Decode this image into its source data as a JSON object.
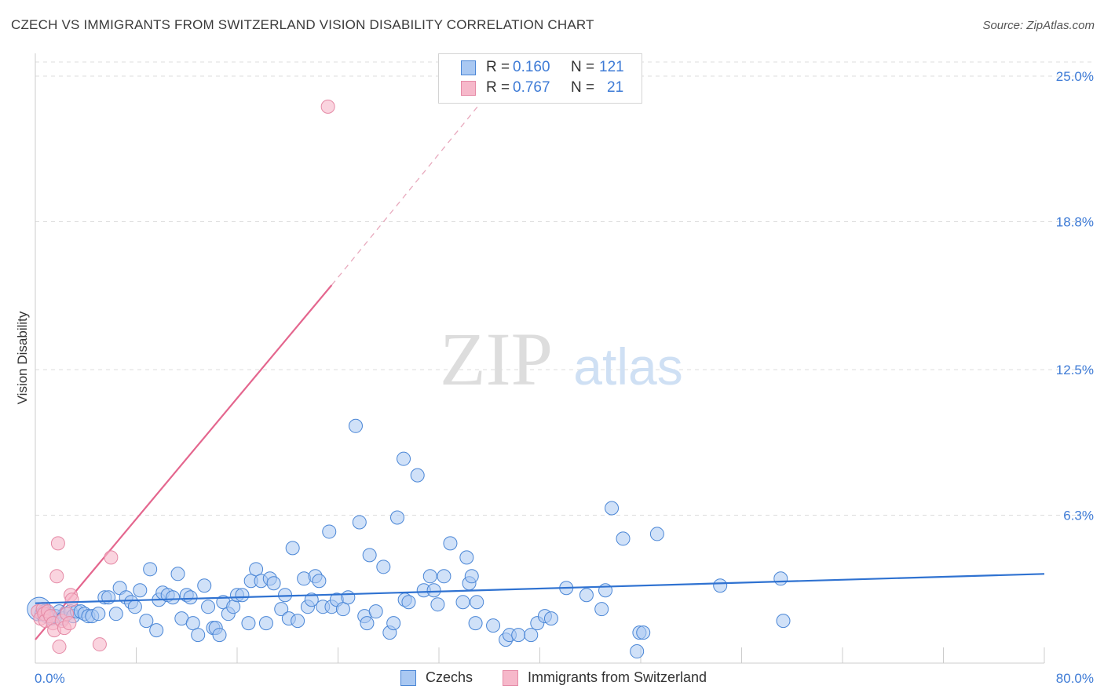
{
  "title": "CZECH VS IMMIGRANTS FROM SWITZERLAND VISION DISABILITY CORRELATION CHART",
  "source": "Source: ZipAtlas.com",
  "watermark": {
    "zip": "ZIP",
    "atlas": "atlas"
  },
  "legend": {
    "series1": {
      "r_label": "R =",
      "r_value": "0.160",
      "n_label": "N =",
      "n_value": "121",
      "color": "#a9c8f2"
    },
    "series2": {
      "r_label": "R =",
      "r_value": "0.767",
      "n_label": "N =",
      "n_value": "21",
      "color": "#f6b8ca"
    }
  },
  "bottom_legend": {
    "series1": "Czechs",
    "series2": "Immigrants from Switzerland"
  },
  "chart_data": {
    "type": "scatter",
    "title": "CZECH VS IMMIGRANTS FROM SWITZERLAND VISION DISABILITY CORRELATION CHART",
    "xlabel": "",
    "ylabel": "Vision Disability",
    "xlim": [
      0,
      80
    ],
    "ylim": [
      0,
      25.6
    ],
    "x_tick_labels": [
      "0.0%",
      "80.0%"
    ],
    "y_ticks": [
      6.3,
      12.5,
      18.8,
      25.0
    ],
    "y_tick_labels": [
      "6.3%",
      "12.5%",
      "18.8%",
      "25.0%"
    ],
    "grid": true,
    "grid_style": "dashed",
    "colors": {
      "czechs": "#a9c8f2",
      "czechs_edge": "#4a86d6",
      "czechs_line": "#2f72d1",
      "swiss": "#f6b8ca",
      "swiss_edge": "#e58aa6",
      "swiss_line": "#e4668e"
    },
    "series": [
      {
        "name": "Czechs",
        "trendline": {
          "x": [
            0,
            80
          ],
          "y": [
            2.55,
            3.8
          ]
        },
        "points": [
          [
            0.3,
            2.3
          ],
          [
            0.5,
            2.1
          ],
          [
            0.7,
            2.2
          ],
          [
            0.9,
            2.0
          ],
          [
            1.1,
            2.1
          ],
          [
            1.3,
            1.9
          ],
          [
            1.6,
            2.0
          ],
          [
            1.9,
            2.2
          ],
          [
            2.2,
            1.9
          ],
          [
            2.5,
            2.1
          ],
          [
            2.8,
            2.2
          ],
          [
            3.0,
            2.0
          ],
          [
            3.3,
            2.2
          ],
          [
            3.6,
            2.2
          ],
          [
            3.9,
            2.1
          ],
          [
            4.2,
            2.0
          ],
          [
            4.5,
            2.0
          ],
          [
            5.0,
            2.1
          ],
          [
            5.5,
            2.8
          ],
          [
            5.8,
            2.8
          ],
          [
            6.4,
            2.1
          ],
          [
            6.7,
            3.2
          ],
          [
            7.2,
            2.8
          ],
          [
            7.6,
            2.6
          ],
          [
            7.9,
            2.4
          ],
          [
            8.3,
            3.1
          ],
          [
            8.8,
            1.8
          ],
          [
            9.1,
            4.0
          ],
          [
            9.6,
            1.4
          ],
          [
            9.8,
            2.7
          ],
          [
            10.1,
            3.0
          ],
          [
            10.5,
            2.9
          ],
          [
            10.9,
            2.8
          ],
          [
            11.3,
            3.8
          ],
          [
            11.6,
            1.9
          ],
          [
            12.0,
            2.9
          ],
          [
            12.3,
            2.8
          ],
          [
            12.5,
            1.7
          ],
          [
            12.9,
            1.2
          ],
          [
            13.4,
            3.3
          ],
          [
            13.7,
            2.4
          ],
          [
            14.1,
            1.5
          ],
          [
            14.3,
            1.5
          ],
          [
            14.6,
            1.2
          ],
          [
            14.9,
            2.6
          ],
          [
            15.3,
            2.1
          ],
          [
            15.7,
            2.4
          ],
          [
            16.0,
            2.9
          ],
          [
            16.4,
            2.9
          ],
          [
            16.9,
            1.7
          ],
          [
            17.1,
            3.5
          ],
          [
            17.5,
            4.0
          ],
          [
            17.9,
            3.5
          ],
          [
            18.3,
            1.7
          ],
          [
            18.6,
            3.6
          ],
          [
            18.9,
            3.4
          ],
          [
            19.5,
            2.3
          ],
          [
            19.8,
            2.9
          ],
          [
            20.1,
            1.9
          ],
          [
            20.4,
            4.9
          ],
          [
            20.8,
            1.8
          ],
          [
            21.3,
            3.6
          ],
          [
            21.6,
            2.4
          ],
          [
            21.9,
            2.7
          ],
          [
            22.2,
            3.7
          ],
          [
            22.5,
            3.5
          ],
          [
            22.8,
            2.4
          ],
          [
            23.3,
            5.6
          ],
          [
            23.5,
            2.4
          ],
          [
            23.9,
            2.7
          ],
          [
            24.4,
            2.3
          ],
          [
            24.8,
            2.8
          ],
          [
            25.4,
            10.1
          ],
          [
            25.7,
            6.0
          ],
          [
            26.1,
            2.0
          ],
          [
            26.3,
            1.7
          ],
          [
            26.5,
            4.6
          ],
          [
            27.0,
            2.2
          ],
          [
            27.6,
            4.1
          ],
          [
            28.1,
            1.3
          ],
          [
            28.4,
            1.7
          ],
          [
            28.7,
            6.2
          ],
          [
            29.2,
            8.7
          ],
          [
            29.3,
            2.7
          ],
          [
            29.6,
            2.6
          ],
          [
            30.3,
            8.0
          ],
          [
            30.8,
            3.1
          ],
          [
            31.3,
            3.7
          ],
          [
            31.6,
            3.1
          ],
          [
            31.9,
            2.5
          ],
          [
            32.4,
            3.7
          ],
          [
            32.9,
            5.1
          ],
          [
            33.9,
            2.6
          ],
          [
            34.2,
            4.5
          ],
          [
            34.4,
            3.4
          ],
          [
            34.6,
            3.7
          ],
          [
            34.9,
            1.7
          ],
          [
            35.0,
            2.6
          ],
          [
            36.3,
            1.6
          ],
          [
            37.3,
            1.0
          ],
          [
            37.6,
            1.2
          ],
          [
            38.3,
            1.2
          ],
          [
            39.3,
            1.2
          ],
          [
            39.8,
            1.7
          ],
          [
            40.4,
            2.0
          ],
          [
            40.9,
            1.9
          ],
          [
            42.1,
            3.2
          ],
          [
            43.7,
            2.9
          ],
          [
            44.9,
            2.3
          ],
          [
            45.2,
            3.1
          ],
          [
            45.7,
            6.6
          ],
          [
            46.6,
            5.3
          ],
          [
            47.7,
            0.5
          ],
          [
            47.9,
            1.3
          ],
          [
            48.2,
            1.3
          ],
          [
            49.3,
            5.5
          ],
          [
            54.3,
            3.3
          ],
          [
            59.1,
            3.6
          ],
          [
            59.3,
            1.8
          ]
        ]
      },
      {
        "name": "Immigrants from Switzerland",
        "trendline": {
          "x": [
            0,
            23.5
          ],
          "y": [
            1.0,
            16.1
          ]
        },
        "trendline_extension": {
          "x": [
            23.5,
            37.5
          ],
          "y": [
            16.1,
            25.3
          ]
        },
        "points": [
          [
            0.2,
            2.2
          ],
          [
            0.4,
            1.9
          ],
          [
            0.6,
            2.3
          ],
          [
            0.7,
            2.1
          ],
          [
            0.8,
            1.8
          ],
          [
            1.0,
            2.2
          ],
          [
            1.2,
            2.0
          ],
          [
            1.4,
            1.7
          ],
          [
            1.5,
            1.4
          ],
          [
            1.7,
            3.7
          ],
          [
            1.8,
            5.1
          ],
          [
            1.9,
            0.7
          ],
          [
            2.1,
            1.8
          ],
          [
            2.3,
            1.5
          ],
          [
            2.5,
            2.1
          ],
          [
            2.7,
            1.7
          ],
          [
            2.8,
            2.9
          ],
          [
            2.9,
            2.7
          ],
          [
            5.1,
            0.8
          ],
          [
            6.0,
            4.5
          ],
          [
            23.2,
            23.7
          ]
        ]
      }
    ]
  }
}
